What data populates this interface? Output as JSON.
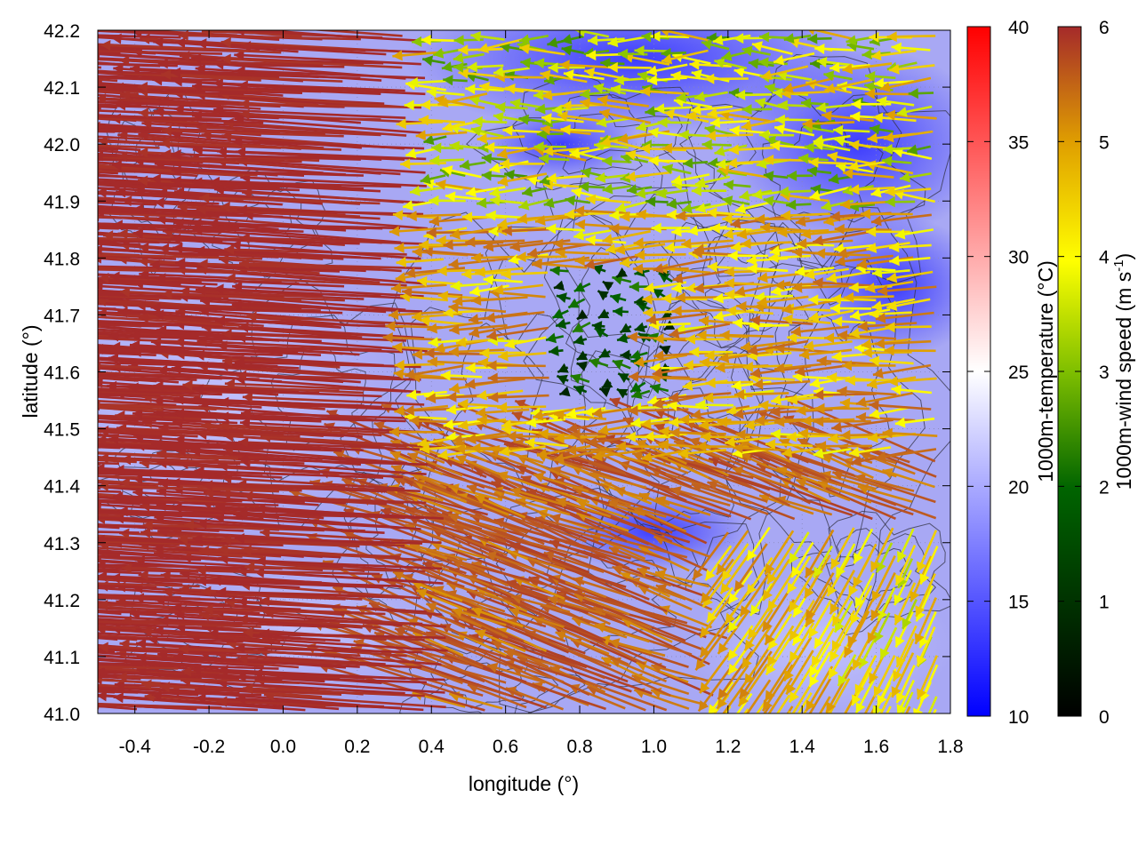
{
  "chart_data": {
    "type": "vector-field-heatmap",
    "xlabel": "longitude (°)",
    "ylabel": "latitude (°)",
    "xlim": [
      -0.5,
      1.8
    ],
    "ylim": [
      41.0,
      42.2
    ],
    "x_ticks": [
      "-0.4",
      "-0.2",
      "0.0",
      "0.2",
      "0.4",
      "0.6",
      "0.8",
      "1.0",
      "1.2",
      "1.4",
      "1.6",
      "1.8"
    ],
    "x_tick_values": [
      -0.4,
      -0.2,
      0.0,
      0.2,
      0.4,
      0.6,
      0.8,
      1.0,
      1.2,
      1.4,
      1.6,
      1.8
    ],
    "y_ticks": [
      "41.0",
      "41.1",
      "41.2",
      "41.3",
      "41.4",
      "41.5",
      "41.6",
      "41.7",
      "41.8",
      "41.9",
      "42.0",
      "42.1",
      "42.2"
    ],
    "y_tick_values": [
      41.0,
      41.1,
      41.2,
      41.3,
      41.4,
      41.5,
      41.6,
      41.7,
      41.8,
      41.9,
      42.0,
      42.1,
      42.2
    ],
    "grid": "dotted",
    "temperature_colorbar": {
      "label": "1000m-temperature (°C)",
      "range": [
        10,
        40
      ],
      "ticks": [
        "10",
        "15",
        "20",
        "25",
        "30",
        "35",
        "40"
      ],
      "tick_values": [
        10,
        15,
        20,
        25,
        30,
        35,
        40
      ],
      "colors": [
        "#0000ff",
        "#ffffff",
        "#ff0000"
      ]
    },
    "wind_colorbar": {
      "label_main": "1000m-wind speed (m s",
      "label_sup": "-1",
      "label_end": ")",
      "range": [
        0,
        6
      ],
      "ticks": [
        "0",
        "1",
        "2",
        "3",
        "4",
        "5",
        "6"
      ],
      "tick_values": [
        0,
        1,
        2,
        3,
        4,
        5,
        6
      ],
      "colors": [
        "#000000",
        "#006400",
        "#7fbf00",
        "#ffff00",
        "#e0a000",
        "#c06020",
        "#a52a2a"
      ]
    },
    "wind_field_regimes": [
      {
        "region": "west",
        "lon": [
          -0.5,
          0.45
        ],
        "lat": [
          41.0,
          42.2
        ],
        "speed": 6.0,
        "direction": "from east (arrows pointing west)"
      },
      {
        "region": "north-center",
        "lon": [
          0.45,
          1.8
        ],
        "lat": [
          41.85,
          42.2
        ],
        "speed": 2.5,
        "direction": "from east"
      },
      {
        "region": "center-calm",
        "lon": [
          0.75,
          1.05
        ],
        "lat": [
          41.55,
          41.78
        ],
        "speed": 0.5,
        "direction": "weak"
      },
      {
        "region": "center-band",
        "lon": [
          0.45,
          1.6
        ],
        "lat": [
          41.45,
          41.85
        ],
        "speed": 3.8,
        "direction": "from east"
      },
      {
        "region": "southeast",
        "lon": [
          1.1,
          1.8
        ],
        "lat": [
          41.0,
          41.35
        ],
        "speed": 3.0,
        "direction": "from south (arrows pointing north)"
      }
    ]
  }
}
